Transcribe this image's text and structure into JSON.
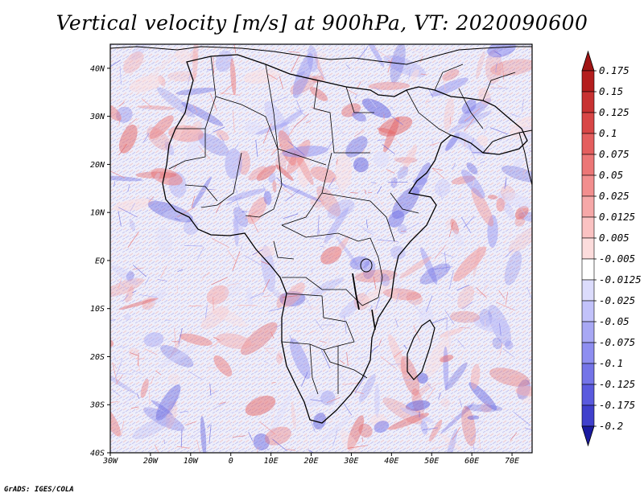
{
  "title": "Vertical velocity [m/s] at 900hPa, VT: 2020090600",
  "credit": "GrADS: IGES/COLA",
  "map": {
    "lon_range": [
      -30,
      75
    ],
    "lat_range": [
      -40,
      45
    ],
    "x_ticks": [
      {
        "value": -30,
        "label": "30W"
      },
      {
        "value": -20,
        "label": "20W"
      },
      {
        "value": -10,
        "label": "10W"
      },
      {
        "value": 0,
        "label": "0"
      },
      {
        "value": 10,
        "label": "10E"
      },
      {
        "value": 20,
        "label": "20E"
      },
      {
        "value": 30,
        "label": "30E"
      },
      {
        "value": 40,
        "label": "40E"
      },
      {
        "value": 50,
        "label": "50E"
      },
      {
        "value": 60,
        "label": "60E"
      },
      {
        "value": 70,
        "label": "70E"
      }
    ],
    "y_ticks": [
      {
        "value": 40,
        "label": "40N"
      },
      {
        "value": 30,
        "label": "30N"
      },
      {
        "value": 20,
        "label": "20N"
      },
      {
        "value": 10,
        "label": "10N"
      },
      {
        "value": 0,
        "label": "EQ"
      },
      {
        "value": -10,
        "label": "10S"
      },
      {
        "value": -20,
        "label": "20S"
      },
      {
        "value": -30,
        "label": "30S"
      },
      {
        "value": -40,
        "label": "40S"
      }
    ]
  },
  "colorbar": {
    "levels": [
      {
        "label": "0.175",
        "color": "#b41e1e"
      },
      {
        "label": "0.15",
        "color": "#c83232"
      },
      {
        "label": "0.125",
        "color": "#d84646"
      },
      {
        "label": "0.1",
        "color": "#e45e5e"
      },
      {
        "label": "0.075",
        "color": "#ec7676"
      },
      {
        "label": "0.05",
        "color": "#f28e8e"
      },
      {
        "label": "0.025",
        "color": "#f6a8a8"
      },
      {
        "label": "0.0125",
        "color": "#fac2c2"
      },
      {
        "label": "0.005",
        "color": "#fcdcdc"
      },
      {
        "label": "-0.005",
        "color": "#ffffff"
      },
      {
        "label": "-0.0125",
        "color": "#dcdcfc"
      },
      {
        "label": "-0.025",
        "color": "#c2c2fa"
      },
      {
        "label": "-0.05",
        "color": "#a8a8f4"
      },
      {
        "label": "-0.075",
        "color": "#8e8ef0"
      },
      {
        "label": "-0.1",
        "color": "#7474e8"
      },
      {
        "label": "-0.125",
        "color": "#5a5ade"
      },
      {
        "label": "-0.175",
        "color": "#4040cc"
      },
      {
        "label": "-0.2",
        "color": "#2626b4"
      }
    ],
    "top_arrow_color": "#a01414",
    "bottom_arrow_color": "#1a1aa0"
  }
}
